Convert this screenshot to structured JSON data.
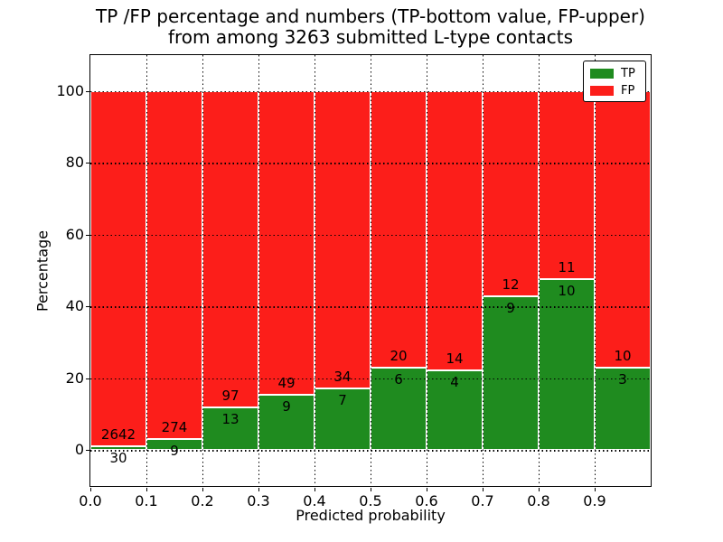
{
  "title": {
    "line1": "TP /FP percentage and numbers (TP-bottom value, FP-upper)",
    "line2": "from among 3263 submitted L-type contacts"
  },
  "y_axis": {
    "label": "Percentage",
    "ticks": [
      "0",
      "20",
      "40",
      "60",
      "80",
      "100"
    ]
  },
  "x_axis": {
    "label": "Predicted probability",
    "ticks": [
      "0.0",
      "0.1",
      "0.2",
      "0.3",
      "0.4",
      "0.5",
      "0.6",
      "0.7",
      "0.8",
      "0.9"
    ]
  },
  "legend": {
    "items": [
      {
        "label": "TP",
        "color": "#1f8b1f"
      },
      {
        "label": "FP",
        "color": "#fc1e1a"
      }
    ]
  },
  "colors": {
    "tp": "#1f8b1f",
    "fp": "#fc1e1a",
    "grid": "#000000",
    "background": "#ffffff"
  },
  "chart_data": {
    "type": "bar",
    "stacked": true,
    "normalized_to_percent": true,
    "title": "TP /FP percentage and numbers (TP-bottom value, FP-upper) from among 3263 submitted L-type contacts",
    "xlabel": "Predicted probability",
    "ylabel": "Percentage",
    "ylim": [
      -10,
      110
    ],
    "xlim": [
      0.0,
      1.0
    ],
    "yticks": [
      0,
      20,
      40,
      60,
      80,
      100
    ],
    "xticks": [
      0.0,
      0.1,
      0.2,
      0.3,
      0.4,
      0.5,
      0.6,
      0.7,
      0.8,
      0.9
    ],
    "grid": "dotted",
    "legend_position": "upper right",
    "categories": [
      "0.0-0.1",
      "0.1-0.2",
      "0.2-0.3",
      "0.3-0.4",
      "0.4-0.5",
      "0.5-0.6",
      "0.6-0.7",
      "0.7-0.8",
      "0.8-0.9",
      "0.9-1.0"
    ],
    "series": [
      {
        "name": "TP",
        "color": "#1f8b1f",
        "counts": [
          30,
          9,
          13,
          9,
          7,
          6,
          4,
          9,
          10,
          3
        ],
        "percent": [
          1.1,
          3.2,
          11.8,
          15.5,
          17.1,
          23.1,
          22.2,
          42.9,
          47.6,
          23.1
        ]
      },
      {
        "name": "FP",
        "color": "#fc1e1a",
        "counts": [
          2642,
          274,
          97,
          49,
          34,
          20,
          14,
          12,
          11,
          10
        ],
        "percent": [
          98.9,
          96.8,
          88.2,
          84.5,
          82.9,
          76.9,
          77.8,
          57.1,
          52.4,
          76.9
        ]
      }
    ]
  }
}
